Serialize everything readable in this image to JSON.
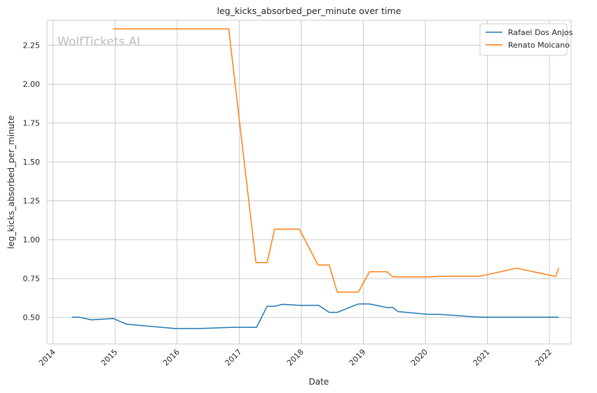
{
  "chart_data": {
    "type": "line",
    "title": "leg_kicks_absorbed_per_minute over time",
    "xlabel": "Date",
    "ylabel": "leg_kicks_absorbed_per_minute",
    "watermark": "WolfTickets.AI",
    "xlim": [
      2013.9,
      2022.35
    ],
    "ylim": [
      0.33,
      2.41
    ],
    "x_ticks": [
      {
        "value": 2014,
        "label": "2014"
      },
      {
        "value": 2015,
        "label": "2015"
      },
      {
        "value": 2016,
        "label": "2016"
      },
      {
        "value": 2017,
        "label": "2017"
      },
      {
        "value": 2018,
        "label": "2018"
      },
      {
        "value": 2019,
        "label": "2019"
      },
      {
        "value": 2020,
        "label": "2020"
      },
      {
        "value": 2021,
        "label": "2021"
      },
      {
        "value": 2022,
        "label": "2022"
      }
    ],
    "y_ticks": [
      {
        "value": 0.5,
        "label": "0.50"
      },
      {
        "value": 0.75,
        "label": "0.75"
      },
      {
        "value": 1.0,
        "label": "1.00"
      },
      {
        "value": 1.25,
        "label": "1.25"
      },
      {
        "value": 1.5,
        "label": "1.50"
      },
      {
        "value": 1.75,
        "label": "1.75"
      },
      {
        "value": 2.0,
        "label": "2.00"
      },
      {
        "value": 2.25,
        "label": "2.25"
      }
    ],
    "grid": true,
    "legend_position": "top-right",
    "series": [
      {
        "name": "Rafael Dos Anjos",
        "color": "#1f77b4",
        "points": [
          [
            2014.3,
            0.502
          ],
          [
            2014.42,
            0.502
          ],
          [
            2014.62,
            0.485
          ],
          [
            2014.97,
            0.494
          ],
          [
            2015.18,
            0.457
          ],
          [
            2015.97,
            0.429
          ],
          [
            2016.35,
            0.429
          ],
          [
            2016.88,
            0.437
          ],
          [
            2017.28,
            0.437
          ],
          [
            2017.45,
            0.572
          ],
          [
            2017.57,
            0.572
          ],
          [
            2017.7,
            0.585
          ],
          [
            2017.97,
            0.578
          ],
          [
            2018.28,
            0.578
          ],
          [
            2018.45,
            0.533
          ],
          [
            2018.58,
            0.533
          ],
          [
            2018.92,
            0.587
          ],
          [
            2019.1,
            0.587
          ],
          [
            2019.38,
            0.564
          ],
          [
            2019.48,
            0.564
          ],
          [
            2019.56,
            0.538
          ],
          [
            2020.03,
            0.521
          ],
          [
            2020.2,
            0.521
          ],
          [
            2020.88,
            0.502
          ],
          [
            2021.5,
            0.502
          ],
          [
            2022.15,
            0.502
          ]
        ]
      },
      {
        "name": "Renato Moicano",
        "color": "#ff7f0e",
        "points": [
          [
            2014.97,
            2.355
          ],
          [
            2016.83,
            2.355
          ],
          [
            2017.27,
            0.853
          ],
          [
            2017.45,
            0.853
          ],
          [
            2017.57,
            1.068
          ],
          [
            2017.97,
            1.068
          ],
          [
            2018.27,
            0.838
          ],
          [
            2018.45,
            0.838
          ],
          [
            2018.58,
            0.663
          ],
          [
            2018.92,
            0.663
          ],
          [
            2019.1,
            0.794
          ],
          [
            2019.38,
            0.794
          ],
          [
            2019.48,
            0.761
          ],
          [
            2020.03,
            0.761
          ],
          [
            2020.2,
            0.765
          ],
          [
            2020.88,
            0.765
          ],
          [
            2021.47,
            0.817
          ],
          [
            2022.1,
            0.764
          ],
          [
            2022.15,
            0.818
          ]
        ]
      }
    ]
  }
}
